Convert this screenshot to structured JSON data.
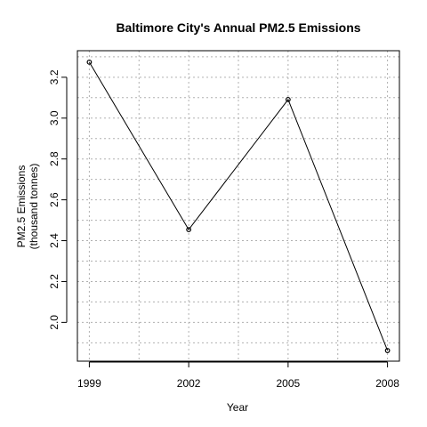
{
  "chart_data": {
    "type": "line",
    "title": "Baltimore City's Annual PM2.5 Emissions",
    "xlabel": "Year",
    "ylabel": [
      "PM2.5 Emissions",
      "(thousand tonnes)"
    ],
    "x": [
      1999,
      2002,
      2005,
      2008
    ],
    "xticks": [
      "1999",
      "2002",
      "2005",
      "2008"
    ],
    "series": [
      {
        "values": [
          3.274,
          2.454,
          3.091,
          1.862
        ]
      }
    ],
    "yticks": [
      "2.0",
      "2.2",
      "2.4",
      "2.6",
      "2.8",
      "3.0",
      "3.2"
    ],
    "ylim": [
      1.81,
      3.33
    ],
    "grid": true,
    "legend": "none"
  }
}
